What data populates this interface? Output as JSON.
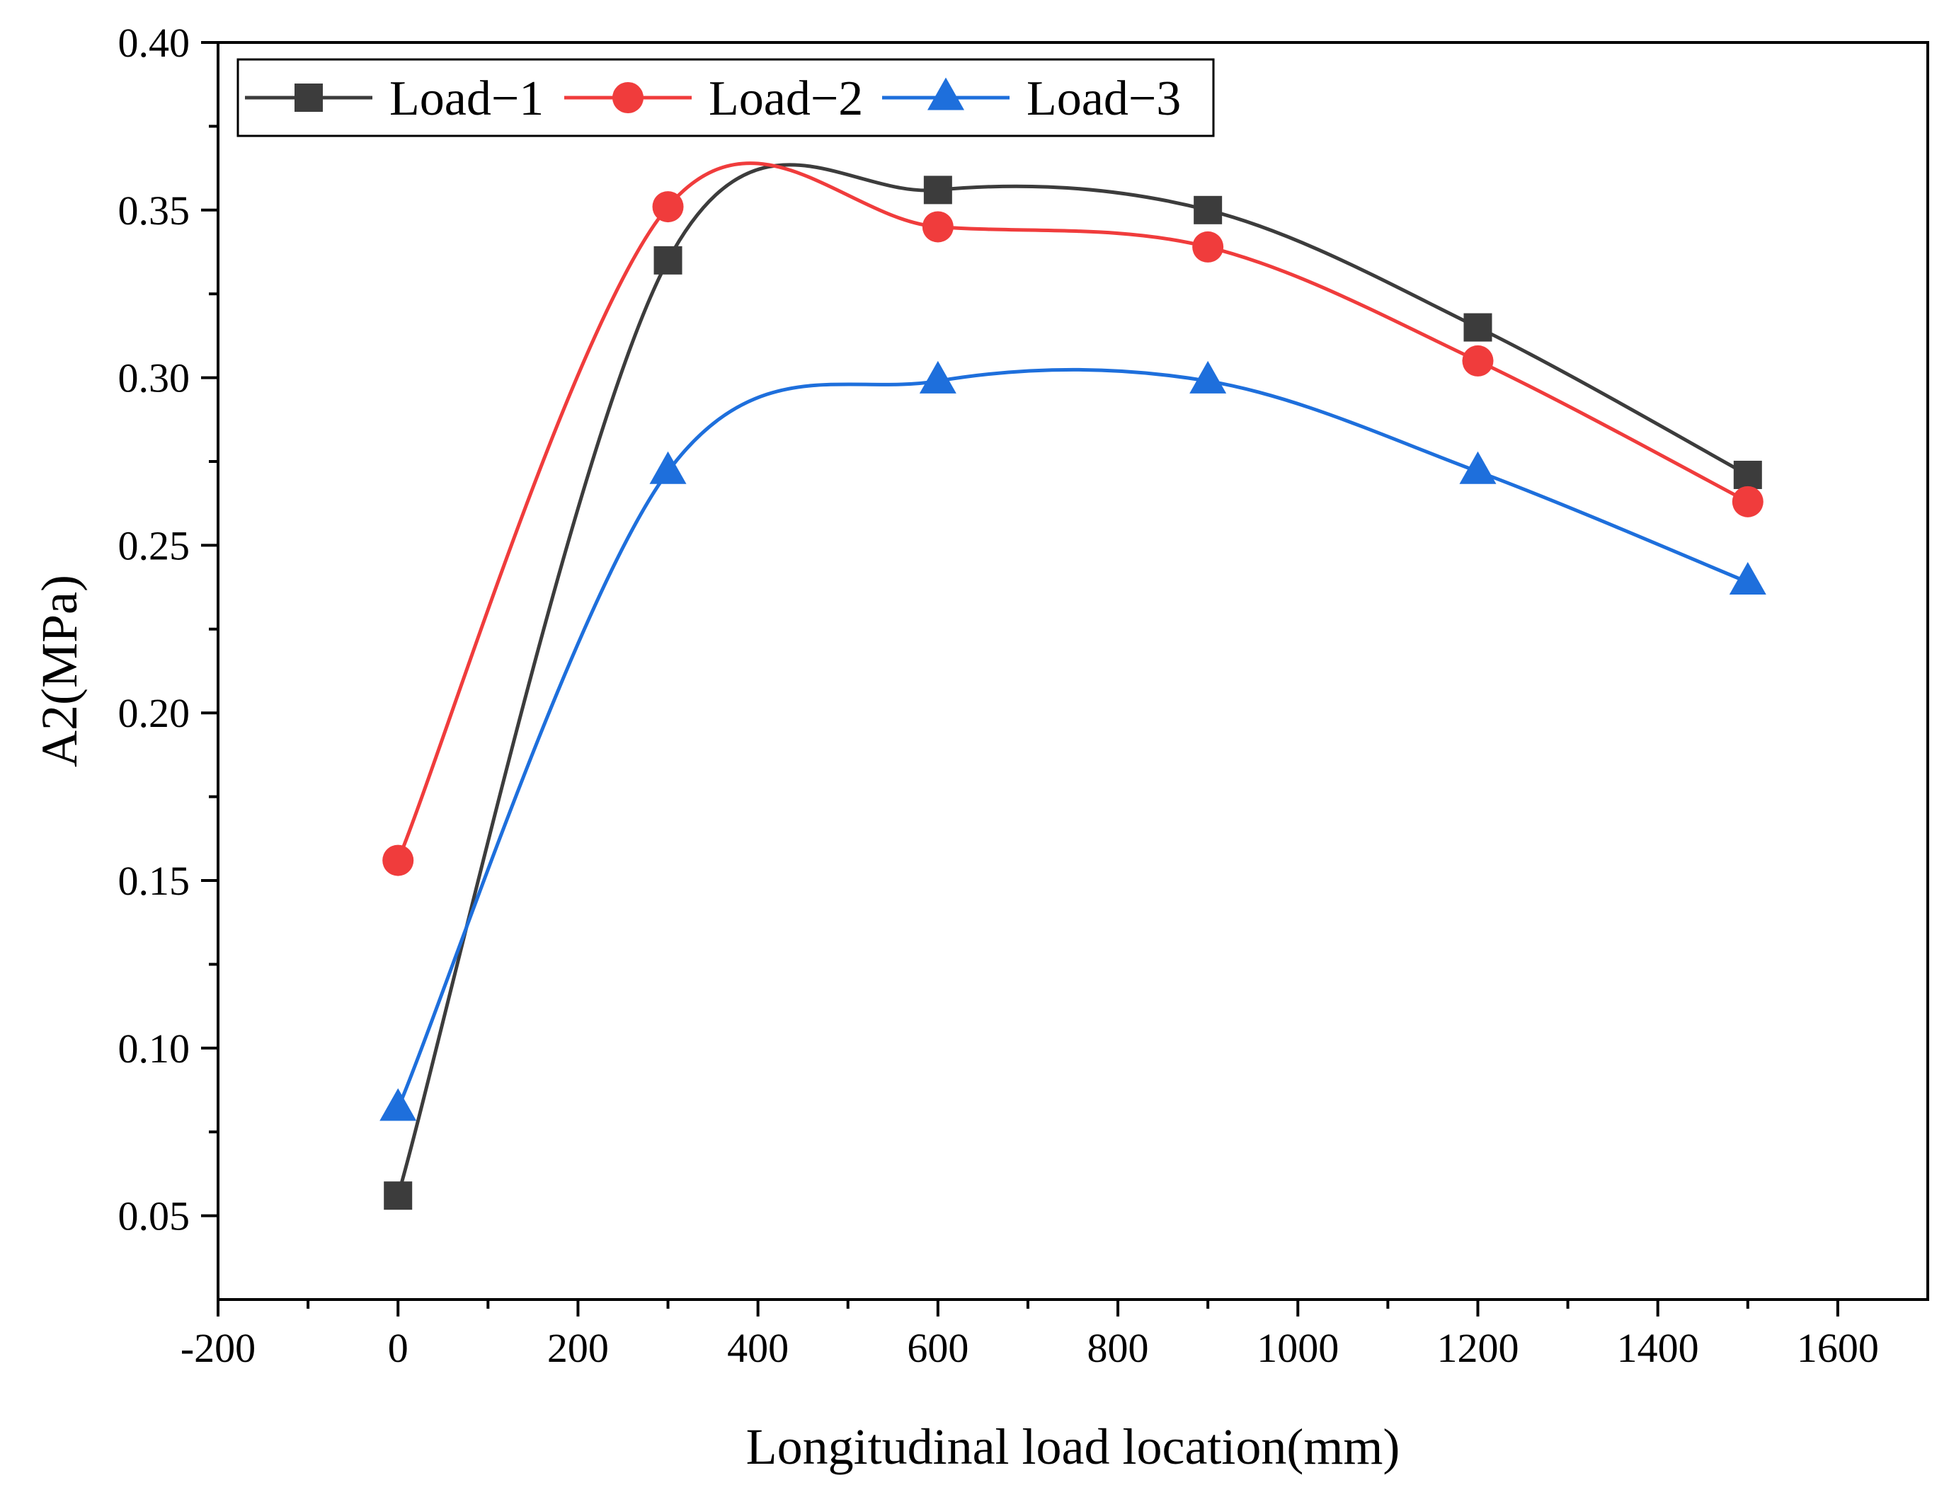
{
  "chart_data": {
    "type": "line",
    "xlabel": "Longitudinal load location(mm)",
    "ylabel": "A2(MPa)",
    "xlim": [
      -200,
      1700
    ],
    "ylim": [
      0.025,
      0.4
    ],
    "x_ticks": [
      -200,
      0,
      200,
      400,
      600,
      800,
      1000,
      1200,
      1400,
      1600
    ],
    "x_tick_labels": [
      "-200",
      "0",
      "200",
      "400",
      "600",
      "800",
      "1000",
      "1200",
      "1400",
      "1600"
    ],
    "y_ticks": [
      0.05,
      0.1,
      0.15,
      0.2,
      0.25,
      0.3,
      0.35,
      0.4
    ],
    "y_tick_labels": [
      "0.05",
      "0.10",
      "0.15",
      "0.20",
      "0.25",
      "0.30",
      "0.35",
      "0.40"
    ],
    "grid": false,
    "legend_position": "top-left",
    "x": [
      0,
      300,
      600,
      900,
      1200,
      1500
    ],
    "series": [
      {
        "name": "Load−1",
        "marker": "square",
        "color": "#3c3c3c",
        "values": [
          0.056,
          0.335,
          0.356,
          0.35,
          0.315,
          0.271
        ]
      },
      {
        "name": "Load−2",
        "marker": "circle",
        "color": "#f03c3c",
        "values": [
          0.156,
          0.351,
          0.345,
          0.339,
          0.305,
          0.263
        ]
      },
      {
        "name": "Load−3",
        "marker": "triangle",
        "color": "#1e6fdc",
        "values": [
          0.082,
          0.272,
          0.299,
          0.299,
          0.272,
          0.239
        ]
      }
    ]
  }
}
